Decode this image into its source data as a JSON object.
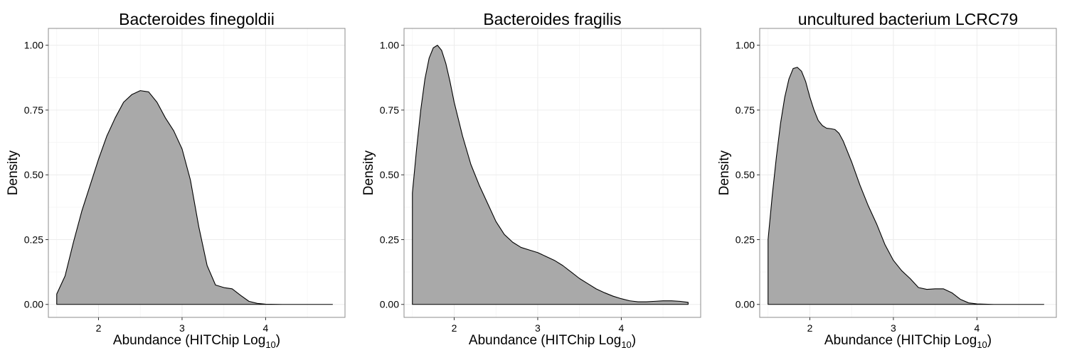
{
  "chart_data": [
    {
      "type": "area",
      "title": "Bacteroides finegoldii",
      "xlabel": "Abundance (HITChip Log",
      "xlabel_sub": "10",
      "xlabel_end": ")",
      "ylabel": "Density",
      "xlim": [
        1.4,
        4.95
      ],
      "ylim": [
        -0.05,
        1.065
      ],
      "xticks": [
        2,
        3,
        4
      ],
      "yticks": [
        0.0,
        0.25,
        0.5,
        0.75,
        1.0
      ],
      "ytick_labels": [
        "0.00",
        "0.25",
        "0.50",
        "0.75",
        "1.00"
      ],
      "grid": true,
      "fill_color": "#a9a9a9",
      "line_color": "#000000",
      "x": [
        1.5,
        1.6,
        1.7,
        1.8,
        1.9,
        2.0,
        2.1,
        2.2,
        2.3,
        2.4,
        2.5,
        2.6,
        2.7,
        2.8,
        2.9,
        3.0,
        3.1,
        3.2,
        3.3,
        3.4,
        3.5,
        3.6,
        3.7,
        3.8,
        3.9,
        4.0,
        4.2,
        4.4,
        4.6,
        4.8
      ],
      "y": [
        0.04,
        0.11,
        0.24,
        0.36,
        0.46,
        0.56,
        0.65,
        0.72,
        0.78,
        0.81,
        0.825,
        0.82,
        0.78,
        0.72,
        0.67,
        0.6,
        0.48,
        0.3,
        0.15,
        0.075,
        0.065,
        0.06,
        0.035,
        0.012,
        0.004,
        0.001,
        0.0,
        0.0,
        0.0,
        0.0
      ]
    },
    {
      "type": "area",
      "title": "Bacteroides fragilis",
      "xlabel": "Abundance (HITChip Log",
      "xlabel_sub": "10",
      "xlabel_end": ")",
      "ylabel": "Density",
      "xlim": [
        1.4,
        4.95
      ],
      "ylim": [
        -0.05,
        1.065
      ],
      "xticks": [
        2,
        3,
        4
      ],
      "yticks": [
        0.0,
        0.25,
        0.5,
        0.75,
        1.0
      ],
      "ytick_labels": [
        "0.00",
        "0.25",
        "0.50",
        "0.75",
        "1.00"
      ],
      "grid": true,
      "fill_color": "#a9a9a9",
      "line_color": "#000000",
      "x": [
        1.5,
        1.55,
        1.6,
        1.65,
        1.7,
        1.75,
        1.8,
        1.85,
        1.9,
        1.95,
        2.0,
        2.1,
        2.2,
        2.3,
        2.4,
        2.5,
        2.6,
        2.7,
        2.8,
        2.9,
        3.0,
        3.1,
        3.2,
        3.3,
        3.4,
        3.5,
        3.6,
        3.7,
        3.8,
        3.9,
        4.0,
        4.1,
        4.2,
        4.3,
        4.4,
        4.5,
        4.6,
        4.7,
        4.8
      ],
      "y": [
        0.43,
        0.6,
        0.75,
        0.87,
        0.95,
        0.99,
        1.0,
        0.98,
        0.93,
        0.86,
        0.78,
        0.65,
        0.54,
        0.46,
        0.39,
        0.32,
        0.27,
        0.24,
        0.22,
        0.21,
        0.2,
        0.185,
        0.17,
        0.15,
        0.125,
        0.1,
        0.08,
        0.06,
        0.045,
        0.032,
        0.022,
        0.014,
        0.01,
        0.01,
        0.012,
        0.014,
        0.014,
        0.012,
        0.008
      ]
    },
    {
      "type": "area",
      "title": "uncultured bacterium LCRC79",
      "xlabel": "Abundance (HITChip Log",
      "xlabel_sub": "10",
      "xlabel_end": ")",
      "ylabel": "Density",
      "xlim": [
        1.4,
        4.95
      ],
      "ylim": [
        -0.05,
        1.065
      ],
      "xticks": [
        2,
        3,
        4
      ],
      "yticks": [
        0.0,
        0.25,
        0.5,
        0.75,
        1.0
      ],
      "ytick_labels": [
        "0.00",
        "0.25",
        "0.50",
        "0.75",
        "1.00"
      ],
      "grid": true,
      "fill_color": "#a9a9a9",
      "line_color": "#000000",
      "x": [
        1.5,
        1.55,
        1.6,
        1.65,
        1.7,
        1.75,
        1.8,
        1.85,
        1.9,
        1.95,
        2.0,
        2.05,
        2.1,
        2.15,
        2.2,
        2.25,
        2.3,
        2.35,
        2.4,
        2.5,
        2.6,
        2.7,
        2.8,
        2.9,
        3.0,
        3.1,
        3.2,
        3.3,
        3.4,
        3.5,
        3.6,
        3.7,
        3.8,
        3.9,
        4.0,
        4.2,
        4.4,
        4.6,
        4.8
      ],
      "y": [
        0.25,
        0.42,
        0.57,
        0.7,
        0.8,
        0.87,
        0.91,
        0.915,
        0.9,
        0.86,
        0.8,
        0.75,
        0.71,
        0.69,
        0.68,
        0.678,
        0.675,
        0.66,
        0.63,
        0.55,
        0.46,
        0.38,
        0.31,
        0.23,
        0.17,
        0.13,
        0.1,
        0.065,
        0.058,
        0.06,
        0.06,
        0.045,
        0.02,
        0.006,
        0.002,
        0.0,
        0.0,
        0.0,
        0.0
      ]
    }
  ]
}
